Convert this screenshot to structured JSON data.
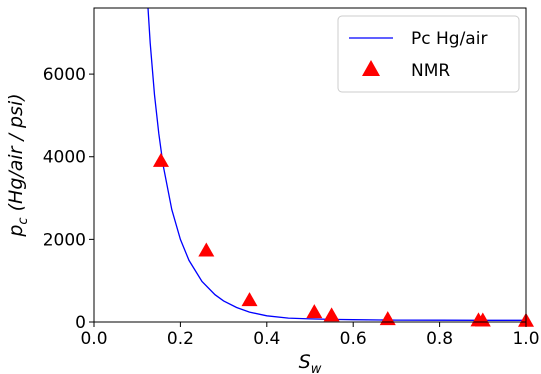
{
  "chart_data": {
    "type": "line+scatter",
    "xlabel": "S",
    "xlabel_sub": "w",
    "ylabel_p": "p",
    "ylabel_sub": "c",
    "ylabel_rest": " (Hg/air / psi)",
    "xlim": [
      0.0,
      1.0
    ],
    "ylim": [
      0,
      7600
    ],
    "x_ticks": [
      0.0,
      0.2,
      0.4,
      0.6,
      0.8,
      1.0
    ],
    "x_tick_labels": [
      "0.0",
      "0.2",
      "0.4",
      "0.6",
      "0.8",
      "1.0"
    ],
    "y_ticks": [
      0,
      2000,
      4000,
      6000
    ],
    "y_tick_labels": [
      "0",
      "2000",
      "4000",
      "6000"
    ],
    "grid": false,
    "legend_position": "top-right",
    "series": [
      {
        "name": "Pc Hg/air",
        "kind": "line",
        "color": "#0000ff",
        "x": [
          0.125,
          0.13,
          0.14,
          0.15,
          0.16,
          0.18,
          0.2,
          0.22,
          0.25,
          0.28,
          0.3,
          0.33,
          0.36,
          0.4,
          0.45,
          0.5,
          0.55,
          0.6,
          0.7,
          0.8,
          0.9,
          1.0
        ],
        "y": [
          7600,
          6750,
          5500,
          4560,
          3800,
          2720,
          2000,
          1490,
          980,
          660,
          510,
          350,
          240,
          150,
          95,
          75,
          62,
          55,
          47,
          43,
          41,
          40
        ]
      },
      {
        "name": "NMR",
        "kind": "scatter",
        "marker": "triangle",
        "color": "#ff0000",
        "x": [
          0.155,
          0.26,
          0.36,
          0.51,
          0.55,
          0.68,
          0.89,
          0.9,
          1.0
        ],
        "y": [
          3900,
          1730,
          530,
          240,
          160,
          70,
          40,
          35,
          30
        ]
      }
    ]
  }
}
